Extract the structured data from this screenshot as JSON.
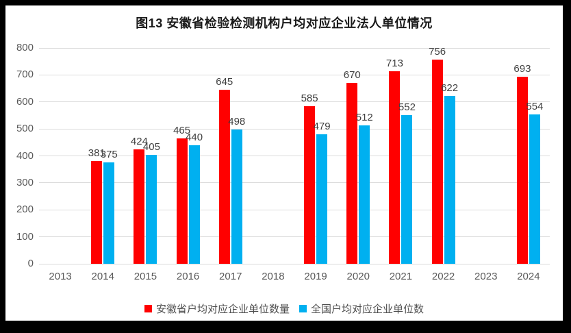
{
  "chart_data": {
    "type": "bar",
    "title": "图13  安徽省检验检测机构户均对应企业法人单位情况",
    "categories": [
      "2013",
      "2014",
      "2015",
      "2016",
      "2017",
      "2018",
      "2019",
      "2020",
      "2021",
      "2022",
      "2023",
      "2024"
    ],
    "series": [
      {
        "name": "安徽省户均对应企业单位数量",
        "color": "#FF0000",
        "values": [
          null,
          381,
          424,
          465,
          645,
          null,
          585,
          670,
          713,
          756,
          null,
          693
        ]
      },
      {
        "name": "全国户均对应企业单位数",
        "color": "#00B0F0",
        "values": [
          null,
          375,
          405,
          440,
          498,
          null,
          479,
          512,
          552,
          622,
          null,
          554
        ]
      }
    ],
    "ylim": [
      0,
      800
    ],
    "ytick_step": 100,
    "grid": true,
    "gridline_color": "#DBDBDB",
    "legend_position": "bottom",
    "data_labels": true
  }
}
